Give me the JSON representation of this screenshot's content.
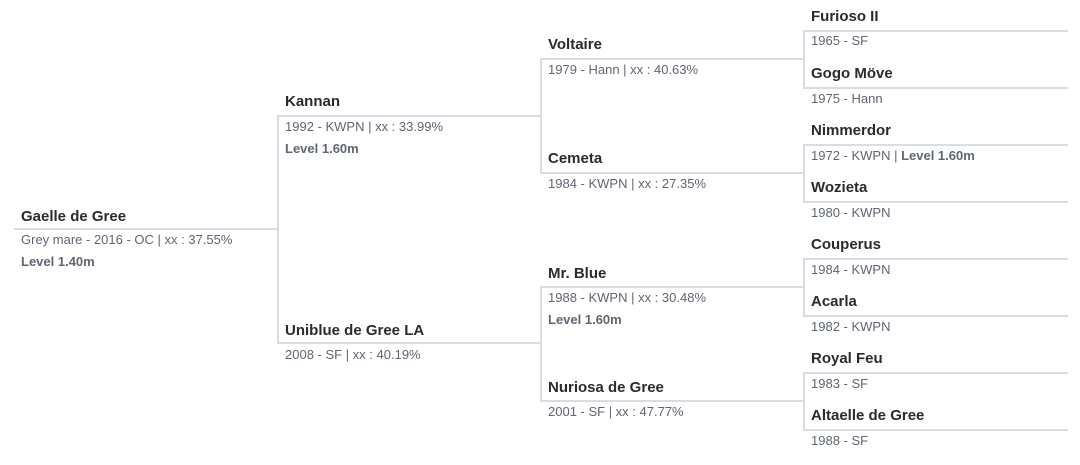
{
  "subject": {
    "name": "Gaelle de Gree",
    "details": "Grey mare - 2016 - OC | xx : 37.55%",
    "level": "Level 1.40m"
  },
  "gen1": [
    {
      "name": "Kannan",
      "details": "1992 - KWPN | xx : 33.99%",
      "level": "Level 1.60m"
    },
    {
      "name": "Uniblue de Gree LA",
      "details": "2008 - SF | xx : 40.19%"
    }
  ],
  "gen2": [
    {
      "name": "Voltaire",
      "details": "1979 - Hann | xx : 40.63%"
    },
    {
      "name": "Cemeta",
      "details": "1984 - KWPN | xx : 27.35%"
    },
    {
      "name": "Mr. Blue",
      "details": "1988 - KWPN | xx : 30.48%",
      "level": "Level 1.60m"
    },
    {
      "name": "Nuriosa de Gree",
      "details": "2001 - SF | xx : 47.77%"
    }
  ],
  "gen3": [
    {
      "name": "Furioso II",
      "details": "1965 - SF"
    },
    {
      "name": "Gogo Möve",
      "details": "1975 - Hann"
    },
    {
      "name": "Nimmerdor",
      "details": "1972 - KWPN | ",
      "level": "Level 1.60m"
    },
    {
      "name": "Wozieta",
      "details": "1980 - KWPN"
    },
    {
      "name": "Couperus",
      "details": "1984 - KWPN"
    },
    {
      "name": "Acarla",
      "details": "1982 - KWPN"
    },
    {
      "name": "Royal Feu",
      "details": "1983 - SF"
    },
    {
      "name": "Altaelle de Gree",
      "details": "1988 - SF"
    }
  ]
}
